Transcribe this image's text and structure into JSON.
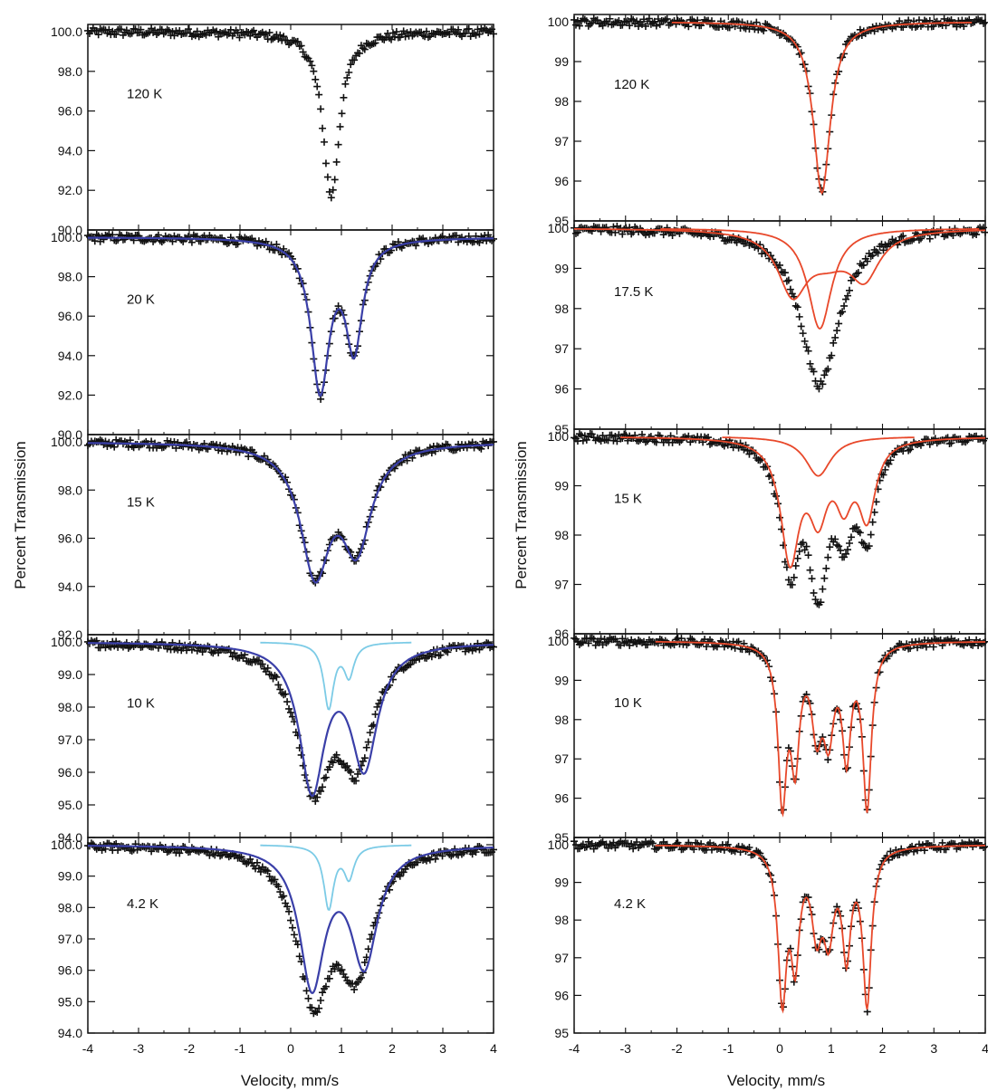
{
  "figure": {
    "left": {
      "ylabel": "Percent Transmission",
      "xlabel": "Velocity, mm/s",
      "xticks": [
        "-4",
        "-3",
        "-2",
        "-1",
        "0",
        "1",
        "2",
        "3",
        "4"
      ],
      "panels": [
        {
          "label": "120 K",
          "yticks": [
            "100.0",
            "98.0",
            "96.0",
            "94.0",
            "92.0",
            "90.0"
          ]
        },
        {
          "label": "20 K",
          "yticks": [
            "100.0",
            "98.0",
            "96.0",
            "94.0",
            "92.0",
            "90.0"
          ]
        },
        {
          "label": "15 K",
          "yticks": [
            "100.0",
            "98.0",
            "96.0",
            "94.0",
            "92.0"
          ]
        },
        {
          "label": "10 K",
          "yticks": [
            "100.0",
            "99.0",
            "98.0",
            "97.0",
            "96.0",
            "95.0",
            "94.0"
          ]
        },
        {
          "label": "4.2 K",
          "yticks": [
            "100.0",
            "99.0",
            "98.0",
            "97.0",
            "96.0",
            "95.0",
            "94.0"
          ]
        }
      ]
    },
    "right": {
      "ylabel": "Percent Transmission",
      "xlabel": "Velocity, mm/s",
      "xticks": [
        "-4",
        "-3",
        "-2",
        "-1",
        "0",
        "1",
        "2",
        "3",
        "4"
      ],
      "panels": [
        {
          "label": "120 K",
          "yticks": [
            "100",
            "99",
            "98",
            "97",
            "96",
            "95"
          ]
        },
        {
          "label": "17.5 K",
          "yticks": [
            "100",
            "99",
            "98",
            "97",
            "96",
            "95"
          ]
        },
        {
          "label": "15 K",
          "yticks": [
            "100",
            "99",
            "98",
            "97",
            "96"
          ]
        },
        {
          "label": "10 K",
          "yticks": [
            "100",
            "99",
            "98",
            "97",
            "96",
            "95"
          ]
        },
        {
          "label": "4.2 K",
          "yticks": [
            "100",
            "99",
            "98",
            "97",
            "96",
            "95"
          ]
        }
      ]
    }
  },
  "colors": {
    "data": "#111111",
    "fit_blue": "#3a3fa8",
    "sub_cyan": "#7ccbe6",
    "sub_red": "#e8482a",
    "axis": "#111111"
  },
  "chart_data": [
    {
      "type": "scatter",
      "panel": "left-120K",
      "title": "",
      "xlabel": "",
      "ylabel": "Percent Transmission",
      "xlim": [
        -4,
        4
      ],
      "ylim": [
        90.0,
        100.0
      ],
      "series": [
        {
          "style": "points",
          "color": "black",
          "peaks": [
            {
              "center": 0.8,
              "depth": 8.3,
              "hwhm": 0.2
            }
          ]
        }
      ]
    },
    {
      "type": "scatter",
      "panel": "left-20K",
      "title": "",
      "xlabel": "",
      "ylabel": "Percent Transmission",
      "xlim": [
        -4,
        4
      ],
      "ylim": [
        90.0,
        100.0
      ],
      "series": [
        {
          "style": "points",
          "color": "black",
          "peaks": [
            {
              "center": 0.58,
              "depth": 7.6,
              "hwhm": 0.22
            },
            {
              "center": 1.25,
              "depth": 5.4,
              "hwhm": 0.2
            }
          ]
        },
        {
          "style": "line",
          "color": "blue",
          "peaks": [
            {
              "center": 0.58,
              "depth": 7.6,
              "hwhm": 0.22
            },
            {
              "center": 1.25,
              "depth": 5.4,
              "hwhm": 0.2
            }
          ]
        }
      ]
    },
    {
      "type": "scatter",
      "panel": "left-15K",
      "title": "",
      "xlabel": "",
      "ylabel": "Percent Transmission",
      "xlim": [
        -4,
        4
      ],
      "ylim": [
        92.0,
        100.0
      ],
      "series": [
        {
          "style": "points",
          "color": "black",
          "peaks": [
            {
              "center": 0.48,
              "depth": 5.2,
              "hwhm": 0.35
            },
            {
              "center": 1.3,
              "depth": 4.1,
              "hwhm": 0.35
            }
          ]
        },
        {
          "style": "line",
          "color": "blue",
          "peaks": [
            {
              "center": 0.48,
              "depth": 5.2,
              "hwhm": 0.35
            },
            {
              "center": 1.3,
              "depth": 4.1,
              "hwhm": 0.35
            }
          ]
        }
      ]
    },
    {
      "type": "scatter",
      "panel": "left-10K",
      "title": "",
      "xlabel": "",
      "ylabel": "Percent Transmission",
      "xlim": [
        -4,
        4
      ],
      "ylim": [
        94.0,
        100.0
      ],
      "series": [
        {
          "style": "points",
          "color": "black",
          "peaks": [
            {
              "center": 0.45,
              "depth": 4.2,
              "hwhm": 0.4
            },
            {
              "center": 1.3,
              "depth": 3.4,
              "hwhm": 0.4
            }
          ]
        },
        {
          "style": "line",
          "color": "blue",
          "peaks": [
            {
              "center": 0.42,
              "depth": 4.4,
              "hwhm": 0.3
            },
            {
              "center": 1.45,
              "depth": 3.7,
              "hwhm": 0.32
            }
          ]
        },
        {
          "style": "line",
          "color": "cyan",
          "peaks": [
            {
              "center": 0.75,
              "depth": 2.0,
              "hwhm": 0.12
            },
            {
              "center": 1.15,
              "depth": 1.0,
              "hwhm": 0.12
            }
          ]
        }
      ]
    },
    {
      "type": "scatter",
      "panel": "left-4.2K",
      "title": "",
      "xlabel": "Velocity, mm/s",
      "ylabel": "Percent Transmission",
      "xlim": [
        -4,
        4
      ],
      "ylim": [
        94.0,
        100.0
      ],
      "series": [
        {
          "style": "points",
          "color": "black",
          "peaks": [
            {
              "center": 0.45,
              "depth": 4.6,
              "hwhm": 0.4
            },
            {
              "center": 1.3,
              "depth": 3.7,
              "hwhm": 0.4
            }
          ]
        },
        {
          "style": "line",
          "color": "blue",
          "peaks": [
            {
              "center": 0.42,
              "depth": 4.4,
              "hwhm": 0.3
            },
            {
              "center": 1.45,
              "depth": 3.7,
              "hwhm": 0.32
            }
          ]
        },
        {
          "style": "line",
          "color": "cyan",
          "peaks": [
            {
              "center": 0.75,
              "depth": 2.0,
              "hwhm": 0.12
            },
            {
              "center": 1.15,
              "depth": 1.0,
              "hwhm": 0.12
            }
          ]
        }
      ]
    },
    {
      "type": "scatter",
      "panel": "right-120K",
      "title": "",
      "xlabel": "",
      "ylabel": "Percent Transmission",
      "xlim": [
        -4,
        4
      ],
      "ylim": [
        95,
        100
      ],
      "series": [
        {
          "style": "points",
          "color": "black",
          "peaks": [
            {
              "center": 0.82,
              "depth": 4.3,
              "hwhm": 0.2
            }
          ]
        },
        {
          "style": "line",
          "color": "red",
          "peaks": [
            {
              "center": 0.82,
              "depth": 4.3,
              "hwhm": 0.2
            }
          ]
        }
      ]
    },
    {
      "type": "scatter",
      "panel": "right-17.5K",
      "title": "",
      "xlabel": "",
      "ylabel": "Percent Transmission",
      "xlim": [
        -4,
        4
      ],
      "ylim": [
        95,
        100
      ],
      "series": [
        {
          "style": "points",
          "color": "black",
          "peaks": [
            {
              "center": 0.78,
              "depth": 3.9,
              "hwhm": 0.45
            }
          ]
        },
        {
          "style": "line",
          "color": "red",
          "peaks": [
            {
              "center": 0.78,
              "depth": 2.5,
              "hwhm": 0.28
            }
          ]
        },
        {
          "style": "line",
          "color": "red",
          "peaks": [
            {
              "center": 0.25,
              "depth": 1.5,
              "hwhm": 0.35
            },
            {
              "center": 1.65,
              "depth": 1.1,
              "hwhm": 0.35
            },
            {
              "center": 0.95,
              "depth": 0.6,
              "hwhm": 0.5
            }
          ]
        }
      ]
    },
    {
      "type": "scatter",
      "panel": "right-15K",
      "title": "",
      "xlabel": "",
      "ylabel": "Percent Transmission",
      "xlim": [
        -4,
        4
      ],
      "ylim": [
        96,
        100
      ],
      "series": [
        {
          "style": "points",
          "color": "black",
          "peaks": [
            {
              "center": 0.2,
              "depth": 2.5,
              "hwhm": 0.22
            },
            {
              "center": 0.75,
              "depth": 2.8,
              "hwhm": 0.22
            },
            {
              "center": 1.25,
              "depth": 1.6,
              "hwhm": 0.2
            },
            {
              "center": 1.7,
              "depth": 1.8,
              "hwhm": 0.2
            }
          ]
        },
        {
          "style": "line",
          "color": "red",
          "peaks": [
            {
              "center": 0.75,
              "depth": 0.8,
              "hwhm": 0.3
            }
          ]
        },
        {
          "style": "line",
          "color": "red",
          "peaks": [
            {
              "center": 0.2,
              "depth": 2.4,
              "hwhm": 0.22
            },
            {
              "center": 0.75,
              "depth": 1.4,
              "hwhm": 0.22
            },
            {
              "center": 1.25,
              "depth": 1.1,
              "hwhm": 0.2
            },
            {
              "center": 1.7,
              "depth": 1.5,
              "hwhm": 0.2
            }
          ]
        }
      ]
    },
    {
      "type": "scatter",
      "panel": "right-10K",
      "title": "",
      "xlabel": "",
      "ylabel": "Percent Transmission",
      "xlim": [
        -4,
        4
      ],
      "ylim": [
        95,
        100
      ],
      "series": [
        {
          "style": "points",
          "color": "black",
          "peaks": [
            {
              "center": 0.05,
              "depth": 3.9,
              "hwhm": 0.1
            },
            {
              "center": 0.3,
              "depth": 2.8,
              "hwhm": 0.1
            },
            {
              "center": 0.72,
              "depth": 2.0,
              "hwhm": 0.12
            },
            {
              "center": 0.95,
              "depth": 2.1,
              "hwhm": 0.12
            },
            {
              "center": 1.3,
              "depth": 2.7,
              "hwhm": 0.1
            },
            {
              "center": 1.7,
              "depth": 4.1,
              "hwhm": 0.1
            }
          ]
        },
        {
          "style": "line",
          "color": "red",
          "peaks": [
            {
              "center": 0.05,
              "depth": 3.9,
              "hwhm": 0.1
            },
            {
              "center": 0.3,
              "depth": 2.8,
              "hwhm": 0.1
            },
            {
              "center": 0.72,
              "depth": 2.0,
              "hwhm": 0.12
            },
            {
              "center": 0.95,
              "depth": 2.1,
              "hwhm": 0.12
            },
            {
              "center": 1.3,
              "depth": 2.7,
              "hwhm": 0.1
            },
            {
              "center": 1.7,
              "depth": 4.1,
              "hwhm": 0.1
            }
          ]
        }
      ]
    },
    {
      "type": "scatter",
      "panel": "right-4.2K",
      "title": "",
      "xlabel": "Velocity, mm/s",
      "ylabel": "Percent Transmission",
      "xlim": [
        -4,
        4
      ],
      "ylim": [
        95,
        100
      ],
      "series": [
        {
          "style": "points",
          "color": "black",
          "peaks": [
            {
              "center": 0.05,
              "depth": 3.9,
              "hwhm": 0.1
            },
            {
              "center": 0.3,
              "depth": 2.8,
              "hwhm": 0.1
            },
            {
              "center": 0.72,
              "depth": 2.0,
              "hwhm": 0.12
            },
            {
              "center": 0.95,
              "depth": 2.1,
              "hwhm": 0.12
            },
            {
              "center": 1.3,
              "depth": 2.7,
              "hwhm": 0.1
            },
            {
              "center": 1.7,
              "depth": 4.1,
              "hwhm": 0.1
            }
          ]
        },
        {
          "style": "line",
          "color": "red",
          "peaks": [
            {
              "center": 0.05,
              "depth": 3.9,
              "hwhm": 0.1
            },
            {
              "center": 0.3,
              "depth": 2.8,
              "hwhm": 0.1
            },
            {
              "center": 0.72,
              "depth": 2.0,
              "hwhm": 0.12
            },
            {
              "center": 0.95,
              "depth": 2.1,
              "hwhm": 0.12
            },
            {
              "center": 1.3,
              "depth": 2.7,
              "hwhm": 0.1
            },
            {
              "center": 1.7,
              "depth": 4.1,
              "hwhm": 0.1
            }
          ]
        }
      ]
    }
  ]
}
